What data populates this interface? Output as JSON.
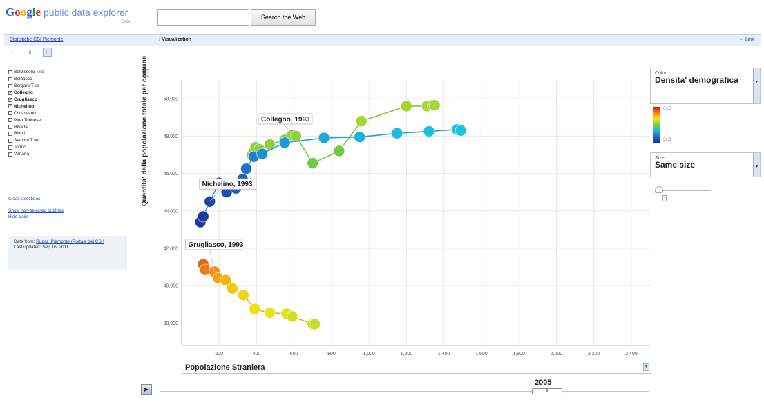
{
  "header": {
    "logo_parts": [
      "G",
      "o",
      "o",
      "g",
      "l",
      "e"
    ],
    "logo_text": "public data explorer",
    "beta": "Beta",
    "search_placeholder": "",
    "search_button": "Search the Web"
  },
  "topbar": {
    "breadcrumb": "Statistiche CSI Piemonte",
    "title": "› Visualization",
    "link": "⇔ Link"
  },
  "view_buttons": [
    {
      "name": "line-chart-view-icon",
      "glyph": "⊢"
    },
    {
      "name": "bar-chart-view-icon",
      "glyph": "ııı"
    },
    {
      "name": "bubble-chart-view-icon",
      "glyph": "⁞⁞"
    }
  ],
  "sidebar": {
    "entities": [
      {
        "label": "Baldissero T.se",
        "checked": false
      },
      {
        "label": "Beinasco",
        "checked": false
      },
      {
        "label": "Borgaro T.se",
        "checked": false
      },
      {
        "label": "Collegno",
        "checked": true
      },
      {
        "label": "Grugliasco",
        "checked": true
      },
      {
        "label": "Nichelino",
        "checked": true
      },
      {
        "label": "Orbassano",
        "checked": false
      },
      {
        "label": "Pino Torinese",
        "checked": false
      },
      {
        "label": "Rivalta",
        "checked": false
      },
      {
        "label": "Rivoli",
        "checked": false
      },
      {
        "label": "Settimo T.se",
        "checked": false
      },
      {
        "label": "Torino",
        "checked": false
      },
      {
        "label": "Venaria",
        "checked": false
      }
    ],
    "clear_selections": "Clear selections",
    "show_non_selected": "Show non-selected bubbles",
    "hide_trails": "Hide trails",
    "data_from_label": "Data from:",
    "data_from_link": "Rupar_Piemonte (Portale dei CSI)",
    "last_updated": "Last updated: Sep 16, 2011"
  },
  "right_panel": {
    "color_small": "Color",
    "color_value": "Densita' demografica",
    "scale_top": "31.7",
    "scale_bottom": "31.3",
    "size_small": "Size",
    "size_value": "Same size"
  },
  "playback": {
    "year": "2005",
    "play_icon": "▶",
    "handle_glyph": "II"
  },
  "colors": {
    "link": "#1a47b8",
    "trail_green": "#7dc836",
    "trail_blue": "#2b9ad8",
    "trail_orange": "#f2a31a"
  },
  "chart_data": {
    "type": "scatter",
    "xlabel": "Popolazione Straniera",
    "ylabel": "Quantita' della popolazione totale per comune",
    "xlim": [
      0,
      2500
    ],
    "ylim": [
      36800,
      51000
    ],
    "xticks": [
      200,
      400,
      600,
      800,
      1000,
      1200,
      1400,
      1600,
      1800,
      2000,
      2200,
      2400
    ],
    "xtick_labels": [
      "200",
      "400",
      "600",
      "800",
      "1,000",
      "1,200",
      "1,400",
      "1,600",
      "1,800",
      "2,000",
      "2,200",
      "2,400"
    ],
    "yticks": [
      38000,
      40000,
      42000,
      44000,
      46000,
      48000,
      50000
    ],
    "ytick_labels": [
      "38.000",
      "40.000",
      "42.000",
      "44.000",
      "46.000",
      "48.000",
      "50.000"
    ],
    "grid": true,
    "series": [
      {
        "name": "Collegno",
        "label": "Collegno, 1993",
        "points": [
          {
            "x": 375,
            "y": 47000,
            "c": "#8fd13a"
          },
          {
            "x": 385,
            "y": 47200,
            "c": "#8fd13a"
          },
          {
            "x": 395,
            "y": 47400,
            "c": "#8fd13a"
          },
          {
            "x": 415,
            "y": 47300,
            "c": "#8fd13a"
          },
          {
            "x": 470,
            "y": 47550,
            "c": "#8fd13a"
          },
          {
            "x": 550,
            "y": 47800,
            "c": "#8fd13a"
          },
          {
            "x": 590,
            "y": 48050,
            "c": "#8fd13a"
          },
          {
            "x": 610,
            "y": 48000,
            "c": "#8fd13a"
          },
          {
            "x": 700,
            "y": 46550,
            "c": "#6ccb40"
          },
          {
            "x": 840,
            "y": 47200,
            "c": "#6ccb40"
          },
          {
            "x": 960,
            "y": 48800,
            "c": "#a4d635"
          },
          {
            "x": 1200,
            "y": 49600,
            "c": "#a4d635"
          },
          {
            "x": 1310,
            "y": 49600,
            "c": "#a4d635"
          },
          {
            "x": 1340,
            "y": 49650,
            "c": "#a4d635"
          },
          {
            "x": 1350,
            "y": 49650,
            "c": "#a4d635"
          }
        ]
      },
      {
        "name": "Nichelino",
        "label": "Nichelino, 1993",
        "points": [
          {
            "x": 100,
            "y": 43400,
            "c": "#1c3a9f"
          },
          {
            "x": 115,
            "y": 43700,
            "c": "#1c3a9f"
          },
          {
            "x": 150,
            "y": 44500,
            "c": "#1c45aa"
          },
          {
            "x": 200,
            "y": 45500,
            "c": "#1d4fb3"
          },
          {
            "x": 240,
            "y": 45000,
            "c": "#1d4fb3"
          },
          {
            "x": 290,
            "y": 45200,
            "c": "#1e5bbd"
          },
          {
            "x": 325,
            "y": 45700,
            "c": "#1e63c4"
          },
          {
            "x": 345,
            "y": 46250,
            "c": "#1e72cc"
          },
          {
            "x": 385,
            "y": 46900,
            "c": "#1e80d2"
          },
          {
            "x": 430,
            "y": 47050,
            "c": "#1c8fd6"
          },
          {
            "x": 550,
            "y": 47650,
            "c": "#1b9ad8"
          },
          {
            "x": 760,
            "y": 47900,
            "c": "#1ba8dc"
          },
          {
            "x": 950,
            "y": 47950,
            "c": "#1bb3dd"
          },
          {
            "x": 1150,
            "y": 48150,
            "c": "#1bb9de"
          },
          {
            "x": 1320,
            "y": 48250,
            "c": "#1bbedf"
          },
          {
            "x": 1470,
            "y": 48350,
            "c": "#1bc3e0"
          },
          {
            "x": 1490,
            "y": 48300,
            "c": "#1bc3e0"
          }
        ]
      },
      {
        "name": "Grugliasco",
        "label": "Grugliasco, 1993",
        "points": [
          {
            "x": 115,
            "y": 41150,
            "c": "#ec6415"
          },
          {
            "x": 125,
            "y": 40850,
            "c": "#f07a13"
          },
          {
            "x": 175,
            "y": 40750,
            "c": "#f28f12"
          },
          {
            "x": 195,
            "y": 40400,
            "c": "#f3a212"
          },
          {
            "x": 235,
            "y": 40300,
            "c": "#f4b411"
          },
          {
            "x": 270,
            "y": 39850,
            "c": "#f4c711"
          },
          {
            "x": 330,
            "y": 39500,
            "c": "#f2d512"
          },
          {
            "x": 390,
            "y": 38750,
            "c": "#eedf14"
          },
          {
            "x": 470,
            "y": 38550,
            "c": "#e6e318"
          },
          {
            "x": 560,
            "y": 38500,
            "c": "#dde31d"
          },
          {
            "x": 590,
            "y": 38350,
            "c": "#d1e022"
          },
          {
            "x": 700,
            "y": 37950,
            "c": "#c6dd27"
          },
          {
            "x": 710,
            "y": 37950,
            "c": "#c6dd27"
          }
        ]
      }
    ]
  }
}
